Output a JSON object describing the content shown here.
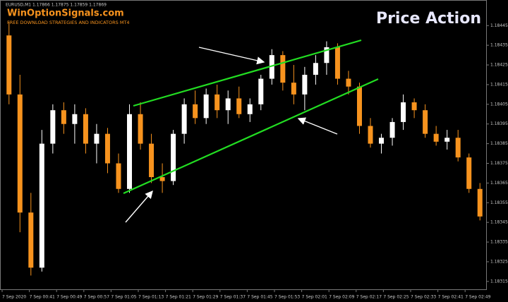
{
  "chart_data": {
    "type": "candlestick",
    "symbol_info": "EURUSD,M1  1.17866 1.17875 1.17859 1.17869",
    "brand": "WinOptionSignals.com",
    "subtitle": "FREE DOWNLOAD STRATEGIES AND INDICATORS MT4",
    "title": "Price Action",
    "up_color": "#ffffff",
    "down_color": "#f7931e",
    "open": [
      1.1844,
      1.1841,
      1.1835,
      1.18322,
      1.18385,
      1.18402,
      1.18395,
      1.184,
      1.18385,
      1.1839,
      1.18375,
      1.18362,
      1.184,
      1.18385,
      1.18368,
      1.18366,
      1.1839,
      1.18405,
      1.18398,
      1.1841,
      1.18402,
      1.18408,
      1.184,
      1.18405,
      1.18418,
      1.1843,
      1.18416,
      1.1841,
      1.1842,
      1.18426,
      1.18434,
      1.18418,
      1.18414,
      1.18394,
      1.18385,
      1.18388,
      1.18396,
      1.18406,
      1.18402,
      1.1839,
      1.18386,
      1.18388,
      1.18378,
      1.18362
    ],
    "high": [
      1.18447,
      1.1842,
      1.1836,
      1.18392,
      1.18405,
      1.18406,
      1.18405,
      1.18403,
      1.18395,
      1.18393,
      1.1838,
      1.18405,
      1.18406,
      1.1839,
      1.18375,
      1.18392,
      1.18408,
      1.18412,
      1.18413,
      1.18415,
      1.18412,
      1.18414,
      1.18408,
      1.1842,
      1.18433,
      1.18432,
      1.18425,
      1.18424,
      1.1843,
      1.18437,
      1.18436,
      1.18422,
      1.18416,
      1.18398,
      1.1839,
      1.18398,
      1.1841,
      1.18408,
      1.18405,
      1.18394,
      1.18392,
      1.18392,
      1.1838,
      1.18365
    ],
    "low": [
      1.18405,
      1.1834,
      1.18318,
      1.1832,
      1.1838,
      1.1839,
      1.18385,
      1.1838,
      1.18375,
      1.1837,
      1.1836,
      1.1836,
      1.18382,
      1.18365,
      1.1836,
      1.18364,
      1.18385,
      1.18395,
      1.18395,
      1.18398,
      1.18395,
      1.18398,
      1.18396,
      1.18402,
      1.18415,
      1.18412,
      1.18405,
      1.18402,
      1.18415,
      1.1842,
      1.18415,
      1.1841,
      1.1839,
      1.18383,
      1.1838,
      1.18384,
      1.18392,
      1.18398,
      1.18388,
      1.18384,
      1.18382,
      1.18376,
      1.1836,
      1.18346
    ],
    "close": [
      1.1841,
      1.1835,
      1.18322,
      1.18385,
      1.18402,
      1.18395,
      1.184,
      1.18385,
      1.1839,
      1.18375,
      1.18362,
      1.184,
      1.18385,
      1.18368,
      1.18366,
      1.1839,
      1.18405,
      1.18398,
      1.1841,
      1.18402,
      1.18408,
      1.184,
      1.18405,
      1.18418,
      1.1843,
      1.18416,
      1.1841,
      1.1842,
      1.18426,
      1.18434,
      1.18418,
      1.18414,
      1.18394,
      1.18385,
      1.18388,
      1.18396,
      1.18406,
      1.18402,
      1.1839,
      1.18386,
      1.18388,
      1.18378,
      1.18362,
      1.18348
    ],
    "x_axis_labels": [
      "7 Sep 2020",
      "7 Sep 00:41",
      "7 Sep 00:49",
      "7 Sep 00:57",
      "7 Sep 01:05",
      "7 Sep 01:13",
      "7 Sep 01:21",
      "7 Sep 01:29",
      "7 Sep 01:37",
      "7 Sep 01:45",
      "7 Sep 01:53",
      "7 Sep 02:01",
      "7 Sep 02:09",
      "7 Sep 02:17",
      "7 Sep 02:25",
      "7 Sep 02:33",
      "7 Sep 02:41",
      "7 Sep 02:49"
    ],
    "ylim": [
      1.18311,
      1.18458
    ],
    "yticks": [
      1.18315,
      1.18325,
      1.18335,
      1.18345,
      1.18355,
      1.18365,
      1.18375,
      1.18385,
      1.18395,
      1.18405,
      1.18415,
      1.18425,
      1.18435,
      1.18445
    ]
  }
}
